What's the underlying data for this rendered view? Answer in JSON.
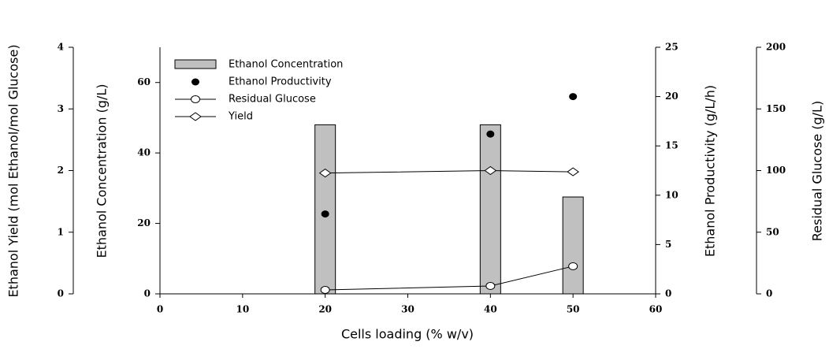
{
  "chart_data": {
    "type": "combo",
    "xlabel": "Cells loading (% w/v)",
    "ylabel": "Ethanol Concentration (g/L)",
    "y2label": "Ethanol Productivity (g/L/h)",
    "y3label": "Ethanol Yield (mol Ethanol/mol Glucose)",
    "y4label": "Residual Glucose (g/L)",
    "x": [
      20,
      40,
      50
    ],
    "xlim": [
      0,
      60
    ],
    "xticks": [
      0,
      10,
      20,
      30,
      40,
      50,
      60
    ],
    "ylim": [
      0,
      70
    ],
    "yticks": [
      0,
      20,
      40,
      60
    ],
    "y2lim": [
      0,
      25
    ],
    "y2ticks": [
      0,
      5,
      10,
      15,
      20,
      25
    ],
    "y3lim": [
      0,
      4
    ],
    "y3ticks": [
      0,
      1,
      2,
      3,
      4
    ],
    "y4lim": [
      0,
      200
    ],
    "y4ticks": [
      0,
      50,
      100,
      150,
      200
    ],
    "series": [
      {
        "name": "Ethanol Concentration",
        "type": "bar",
        "axis": "y",
        "color": "#c0c0c0",
        "values": [
          48,
          48,
          27.5
        ]
      },
      {
        "name": "Ethanol Productivity",
        "type": "scatter",
        "axis": "y2",
        "color": "#000000",
        "values": [
          8.1,
          16.2,
          20.0
        ]
      },
      {
        "name": "Residual Glucose",
        "type": "line-circle",
        "axis": "y4",
        "color": "#ffffff",
        "values": [
          3.2,
          6.4,
          22.4
        ]
      },
      {
        "name": "Yield",
        "type": "line-diamond",
        "axis": "y3",
        "color": "#ffffff",
        "values": [
          1.96,
          2.0,
          1.98
        ]
      }
    ]
  }
}
